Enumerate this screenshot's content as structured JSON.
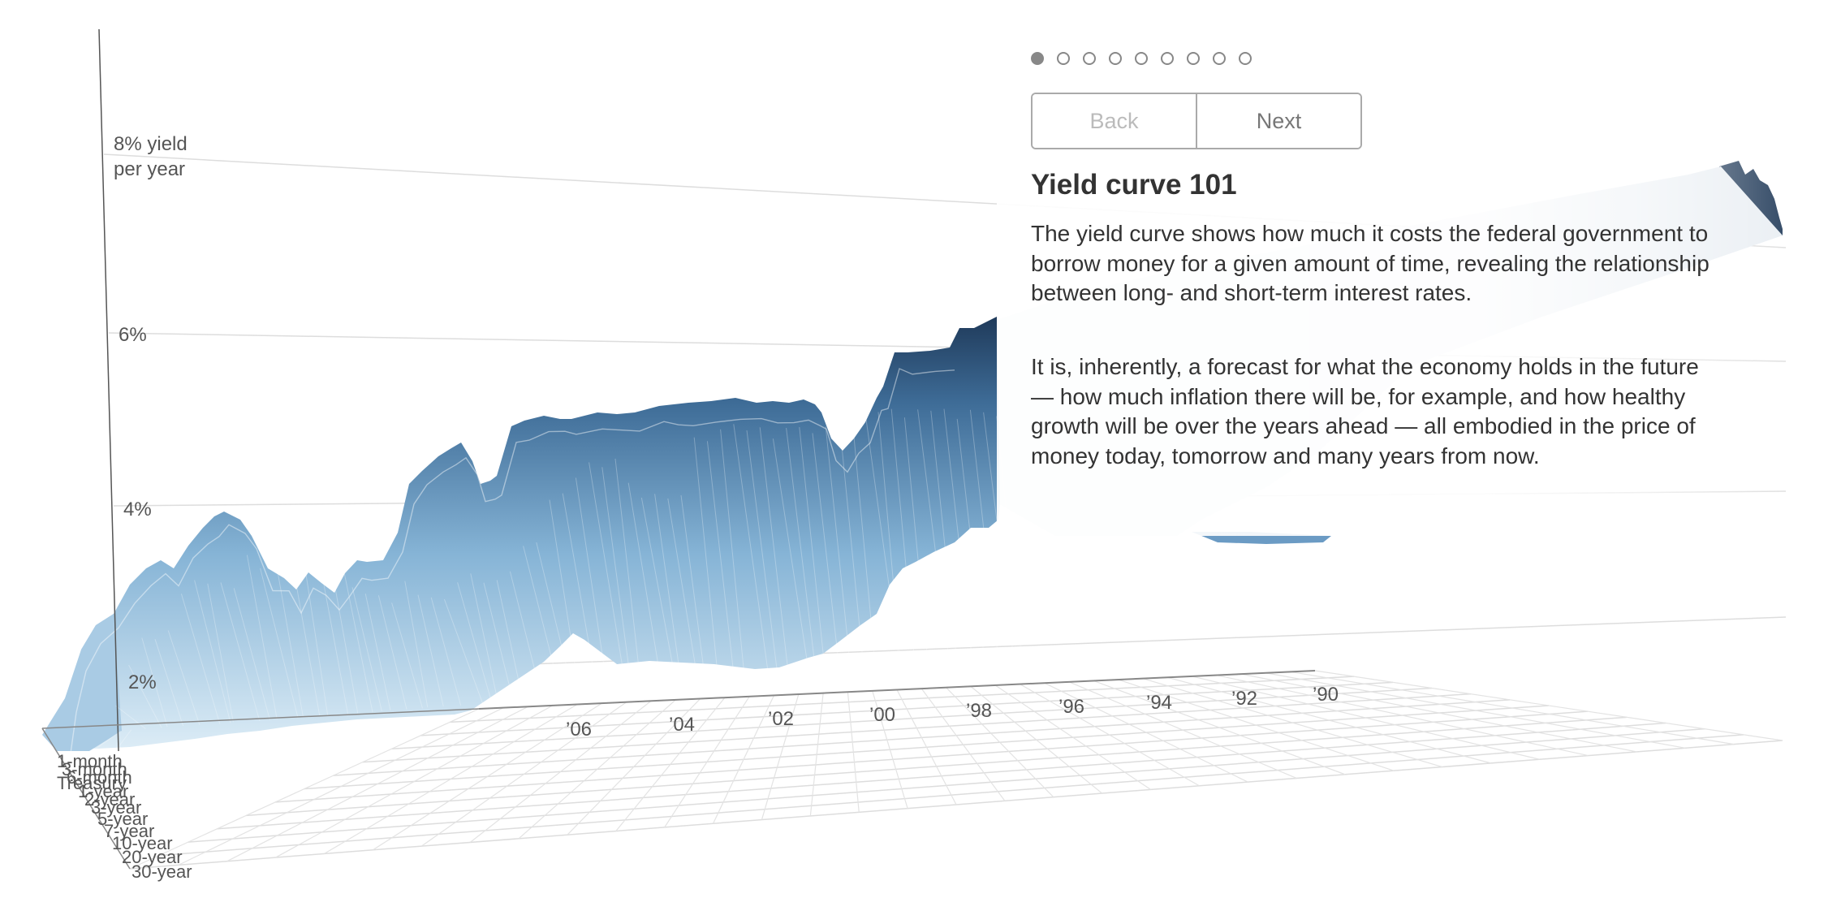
{
  "chart_data": {
    "type": "area",
    "title": "",
    "z_axis_label_lines": [
      "8% yield",
      "per year"
    ],
    "y_ticks": [
      {
        "value": 2,
        "label": "2%"
      },
      {
        "value": 4,
        "label": "4%"
      },
      {
        "value": 6,
        "label": "6%"
      },
      {
        "value": 8,
        "label": ""
      }
    ],
    "x_ticks": [
      "’06",
      "’04",
      "’02",
      "’00",
      "’98",
      "’96",
      "’94",
      "’92",
      "’90"
    ],
    "maturities": [
      "1-month",
      "3-month",
      "6-month",
      "Treasury",
      "1-year",
      "2-year",
      "3-year",
      "5-year",
      "7-year",
      "10-year",
      "20-year",
      "30-year"
    ],
    "grid": true,
    "series": [
      {
        "values_front_short_rate": [
          {
            "x": 2008.6,
            "y": 0.2
          },
          {
            "x": 2008.0,
            "y": 2.3
          },
          {
            "x": 2007.4,
            "y": 4.4
          },
          {
            "x": 2006.8,
            "y": 4.9
          },
          {
            "x": 2006.0,
            "y": 5.0
          },
          {
            "x": 2005.0,
            "y": 3.3
          },
          {
            "x": 2004.0,
            "y": 1.4
          },
          {
            "x": 2003.0,
            "y": 1.0
          },
          {
            "x": 2002.0,
            "y": 1.7
          },
          {
            "x": 2001.0,
            "y": 3.5
          },
          {
            "x": 2000.5,
            "y": 6.0
          },
          {
            "x": 2000.0,
            "y": 5.5
          },
          {
            "x": 1999.0,
            "y": 4.7
          },
          {
            "x": 1998.0,
            "y": 5.0
          },
          {
            "x": 1997.0,
            "y": 5.1
          },
          {
            "x": 1996.0,
            "y": 5.0
          },
          {
            "x": 1995.0,
            "y": 5.6
          },
          {
            "x": 1994.0,
            "y": 4.3
          },
          {
            "x": 1993.0,
            "y": 3.0
          },
          {
            "x": 1992.0,
            "y": 3.4
          },
          {
            "x": 1991.0,
            "y": 5.4
          },
          {
            "x": 1990.0,
            "y": 7.8
          }
        ]
      }
    ]
  },
  "panel": {
    "dots_total": 9,
    "active_dot": 0,
    "back_label": "Back",
    "next_label": "Next",
    "title": "Yield curve 101",
    "para1": "The yield curve shows how much it costs the federal government to borrow money for a given amount of time, revealing the relationship between long- and short-term interest rates.",
    "para2": "It is, inherently, a forecast for what the economy holds in the future — how much inflation there will be, for example, and how healthy growth will be over the years ahead — all embodied in the price of money today, tomorrow and many years from now."
  },
  "colors": {
    "surface_dark": "#1f3a5a",
    "surface_mid": "#5b8db8",
    "surface_light": "#cfe3f0",
    "grid": "#dddddd",
    "axis": "#555555"
  }
}
